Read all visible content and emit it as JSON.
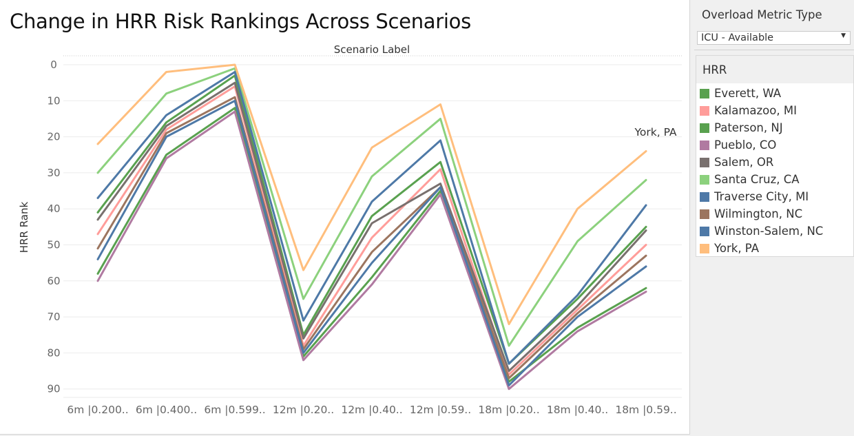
{
  "title": "Change in HRR Risk Rankings Across Scenarios",
  "filter": {
    "title": "Overload Metric Type",
    "value": "ICU - Available"
  },
  "legend": {
    "title": "HRR"
  },
  "chart_data": {
    "type": "line",
    "title": "Change in HRR Risk Rankings Across Scenarios",
    "column_header": "Scenario Label",
    "xlabel": "",
    "ylabel": "HRR Rank",
    "y_reversed": true,
    "ylim": [
      0,
      93
    ],
    "yticks": [
      0,
      10,
      20,
      30,
      40,
      50,
      60,
      70,
      80,
      90
    ],
    "grid": true,
    "legend_position": "right",
    "categories": [
      "6m |0.200..",
      "6m |0.400..",
      "6m |0.599..",
      "12m |0.20..",
      "12m |0.40..",
      "12m |0.59..",
      "18m |0.20..",
      "18m |0.40..",
      "18m |0.59.."
    ],
    "end_label": "York, PA",
    "series": [
      {
        "name": "Everett, WA",
        "color": "#59a14f",
        "values": [
          41,
          16,
          3,
          75,
          42,
          27,
          83,
          65,
          45
        ]
      },
      {
        "name": "Kalamazoo, MI",
        "color": "#ff9d9a",
        "values": [
          47,
          18,
          6,
          78,
          48,
          29,
          86,
          68,
          50
        ]
      },
      {
        "name": "Paterson, NJ",
        "color": "#59a14f",
        "values": [
          58,
          25,
          12,
          81,
          59,
          35,
          88,
          73,
          62
        ]
      },
      {
        "name": "Pueblo, CO",
        "color": "#b07aa1",
        "values": [
          60,
          26,
          13,
          82,
          61,
          36,
          90,
          74,
          63
        ]
      },
      {
        "name": "Salem, OR",
        "color": "#79706e",
        "values": [
          43,
          17,
          5,
          76,
          44,
          33,
          85,
          67,
          46
        ]
      },
      {
        "name": "Santa Cruz, CA",
        "color": "#8cd17d",
        "values": [
          30,
          8,
          1,
          65,
          31,
          15,
          78,
          49,
          32
        ]
      },
      {
        "name": "Traverse City, MI",
        "color": "#4e79a7",
        "values": [
          37,
          14,
          2,
          71,
          38,
          21,
          83,
          64,
          39
        ]
      },
      {
        "name": "Wilmington, NC",
        "color": "#9c755f",
        "values": [
          51,
          19,
          9,
          79,
          52,
          34,
          87,
          69,
          53
        ]
      },
      {
        "name": "Winston-Salem, NC",
        "color": "#4e79a7",
        "values": [
          54,
          20,
          10,
          80,
          55,
          34,
          89,
          70,
          56
        ]
      },
      {
        "name": "York, PA",
        "color": "#ffbe7d",
        "values": [
          22,
          2,
          0,
          57,
          23,
          11,
          72,
          40,
          24
        ]
      }
    ]
  }
}
